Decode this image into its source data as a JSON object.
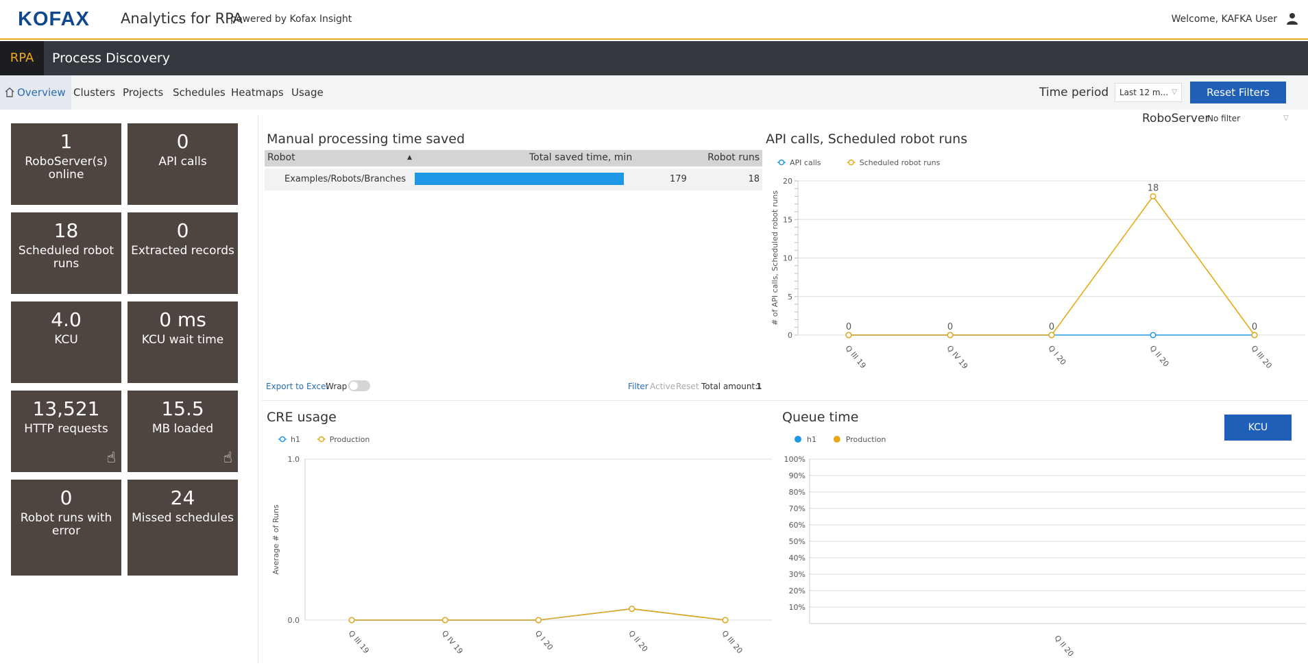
{
  "header": {
    "logo": "KOFAX",
    "app_title": "Analytics for RPA",
    "powered_by": "powered by Kofax Insight",
    "welcome": "Welcome, KAFKA User"
  },
  "subheader": {
    "section": "RPA",
    "title": "Process Discovery"
  },
  "nav": {
    "tabs": [
      "Overview",
      "Clusters",
      "Projects",
      "Schedules",
      "Heatmaps",
      "Usage"
    ],
    "active": "Overview",
    "time_period_label": "Time period",
    "time_period_value": "Last 12 m...",
    "reset_filters": "Reset Filters"
  },
  "tiles": [
    {
      "value": "1",
      "label": "RoboServer(s) online"
    },
    {
      "value": "0",
      "label": "API calls"
    },
    {
      "value": "18",
      "label": "Scheduled robot runs"
    },
    {
      "value": "0",
      "label": "Extracted records"
    },
    {
      "value": "4.0",
      "label": "KCU"
    },
    {
      "value": "0 ms",
      "label": "KCU wait time"
    },
    {
      "value": "13,521",
      "label": "HTTP requests"
    },
    {
      "value": "15.5",
      "label": "MB loaded"
    },
    {
      "value": "0",
      "label": "Robot runs with error"
    },
    {
      "value": "24",
      "label": "Missed schedules"
    }
  ],
  "manual_processing": {
    "title": "Manual processing time saved",
    "columns": [
      "Robot",
      "Total saved time, min",
      "Robot runs"
    ],
    "rows": [
      {
        "robot": "Examples/Robots/Branches",
        "saved": "179",
        "runs": "18",
        "share": 1.0
      }
    ],
    "footer": {
      "export": "Export to Excel",
      "wrap": "Wrap",
      "filter": "Filter",
      "active": "Active",
      "reset": "Reset",
      "total_label": "Total amount:",
      "total_value": "1"
    }
  },
  "roboserver_filter": {
    "label": "RoboServer",
    "value": "No filter"
  },
  "queue_time_button": "KCU",
  "chart_data": [
    {
      "type": "line",
      "title": "API calls, Scheduled robot runs",
      "categories": [
        "Q III 19",
        "Q IV 19",
        "Q I 20",
        "Q II 20",
        "Q III 20"
      ],
      "series": [
        {
          "name": "API calls",
          "values": [
            0,
            0,
            0,
            0,
            0
          ],
          "color": "#1e98e6"
        },
        {
          "name": "Scheduled robot runs",
          "values": [
            0,
            0,
            0,
            18,
            0
          ],
          "color": "#e6a817"
        }
      ],
      "data_labels": [
        "0",
        "0",
        "0",
        "18",
        "0"
      ],
      "ylabel": "# of API calls, Scheduled robot runs",
      "ylim": [
        0,
        20
      ],
      "yticks": [
        "0",
        "5",
        "10",
        "15",
        "20"
      ],
      "legend": "top-left"
    },
    {
      "type": "line",
      "title": "CRE usage",
      "categories": [
        "Q III 19",
        "Q IV 19",
        "Q I 20",
        "Q II 20",
        "Q III 20"
      ],
      "series": [
        {
          "name": "h1",
          "values": [
            0,
            0,
            0,
            0.07,
            0
          ],
          "color": "#1e98e6"
        },
        {
          "name": "Production",
          "values": [
            0,
            0,
            0,
            0.07,
            0
          ],
          "color": "#e6a817"
        }
      ],
      "ylabel": "Average # of Runs",
      "ylim": [
        0,
        1.0
      ],
      "yticks": [
        "0.0",
        "1.0"
      ],
      "legend": "top-left"
    },
    {
      "type": "bar",
      "title": "Queue time",
      "categories": [
        "Q II 20"
      ],
      "series": [
        {
          "name": "h1",
          "values": [
            0
          ],
          "color": "#1e98e6"
        },
        {
          "name": "Production",
          "values": [
            0
          ],
          "color": "#e6a817"
        }
      ],
      "ylim": [
        0,
        100
      ],
      "yticks": [
        "10%",
        "20%",
        "30%",
        "40%",
        "50%",
        "60%",
        "70%",
        "80%",
        "90%",
        "100%"
      ],
      "legend": "top-left"
    }
  ]
}
